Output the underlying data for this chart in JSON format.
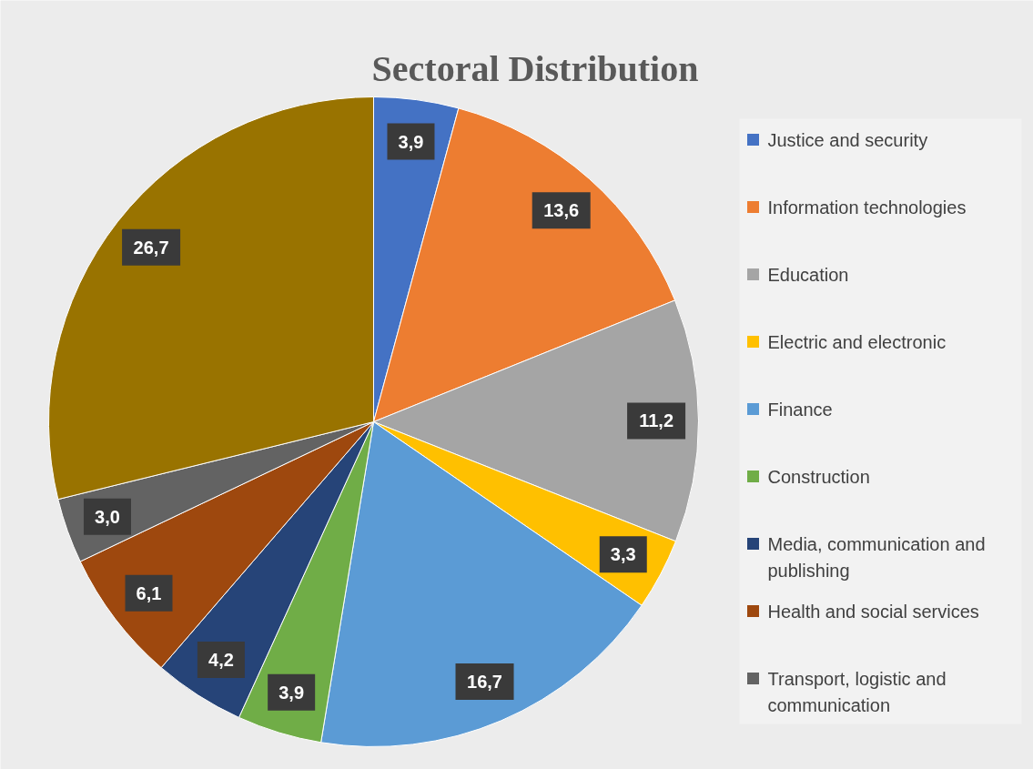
{
  "chart_data": {
    "type": "pie",
    "title": "Sectoral Distribution",
    "categories": [
      "Justice and security",
      "Information technologies",
      "Education",
      "Electric and electronic",
      "Finance",
      "Construction",
      "Media, communication and publishing",
      "Health and social services",
      "Transport, logistic and communication",
      null
    ],
    "values": [
      3.9,
      13.6,
      11.2,
      3.3,
      16.7,
      3.9,
      4.2,
      6.1,
      3.0,
      26.7
    ],
    "value_labels": [
      "3,9",
      "13,6",
      "11,2",
      "3,3",
      "16,7",
      "3,9",
      "4,2",
      "6,1",
      "3,0",
      "26,7"
    ],
    "colors": [
      "#4472c4",
      "#ed7d31",
      "#a5a5a5",
      "#ffc000",
      "#5b9bd5",
      "#70ad47",
      "#264478",
      "#9e480e",
      "#636363",
      "#997300"
    ],
    "legend": "right"
  }
}
